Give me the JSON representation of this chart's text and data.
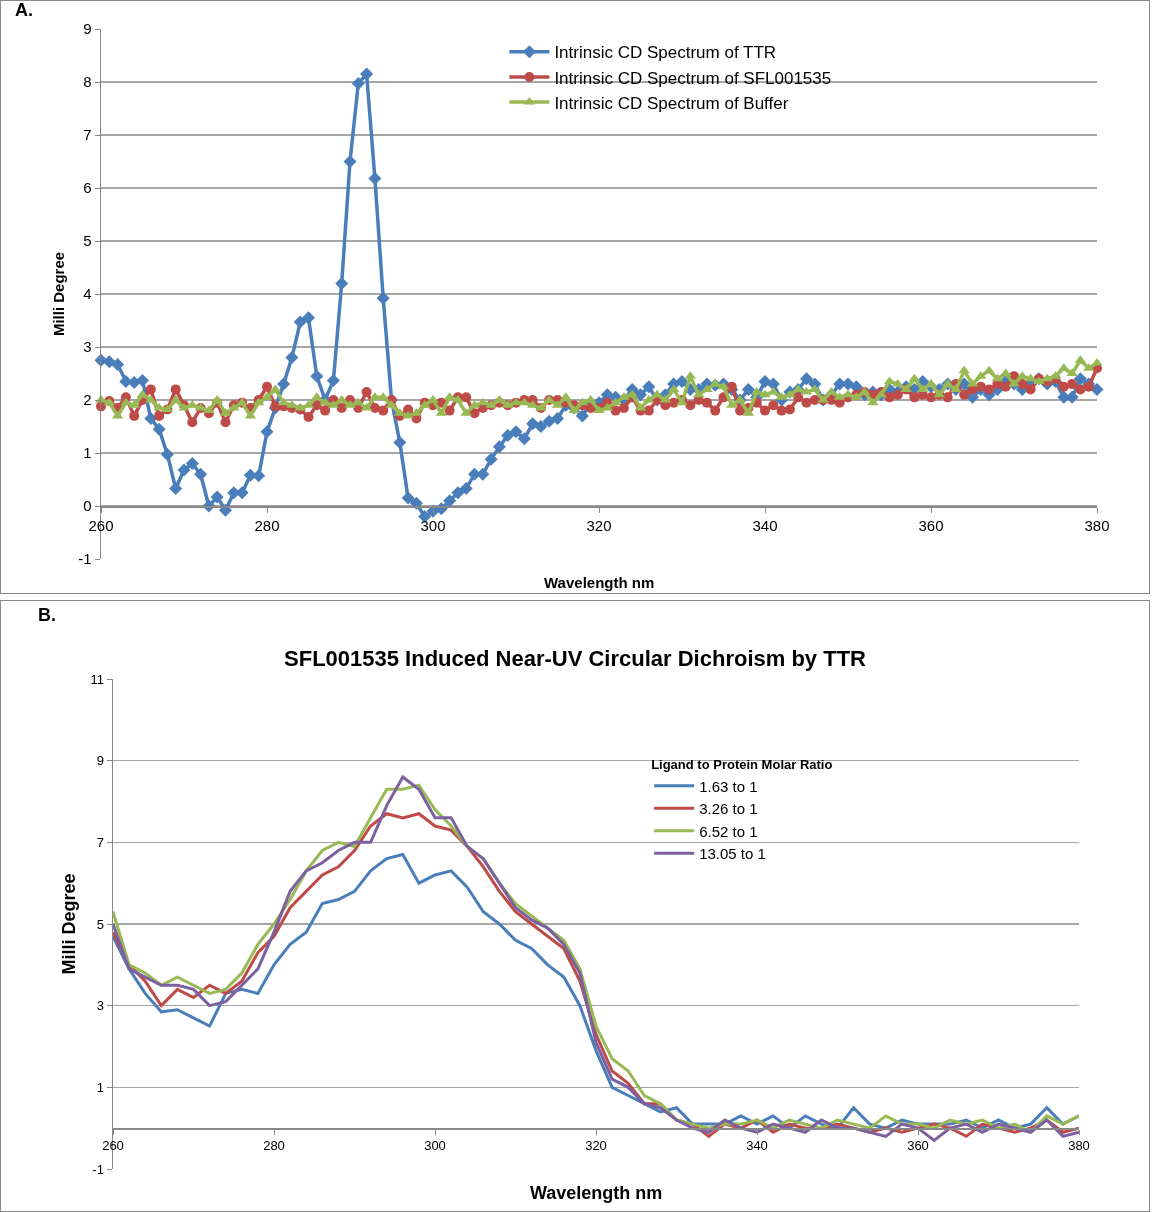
{
  "chart_data": [
    {
      "type": "line",
      "annotations": [
        "A."
      ],
      "xlabel": "Wavelength nm",
      "ylabel": "Milli Degree",
      "xlim": [
        260,
        380
      ],
      "xticks": [
        260,
        280,
        300,
        320,
        340,
        360,
        380
      ],
      "ylim": [
        -1,
        9
      ],
      "yticks": [
        -1,
        0,
        1,
        2,
        3,
        4,
        5,
        6,
        7,
        8,
        9
      ],
      "grid": "y",
      "legend": "top",
      "x": [
        260,
        261,
        262,
        263,
        264,
        265,
        266,
        267,
        268,
        269,
        270,
        271,
        272,
        273,
        274,
        275,
        276,
        277,
        278,
        279,
        280,
        281,
        282,
        283,
        284,
        285,
        286,
        287,
        288,
        289,
        290,
        291,
        292,
        293,
        294,
        295,
        296,
        297,
        298,
        299,
        300,
        301,
        302,
        303,
        304,
        305,
        306,
        307,
        308,
        309,
        310,
        311,
        312,
        313,
        314,
        315,
        316,
        317,
        318,
        319,
        320,
        321,
        322,
        323,
        324,
        325,
        326,
        327,
        328,
        329,
        330,
        331,
        332,
        333,
        334,
        335,
        336,
        337,
        338,
        339,
        340,
        341,
        342,
        343,
        344,
        345,
        346,
        347,
        348,
        349,
        350,
        351,
        352,
        353,
        354,
        355,
        356,
        357,
        358,
        359,
        360,
        361,
        362,
        363,
        364,
        365,
        366,
        367,
        368,
        369,
        370,
        371,
        372,
        373,
        374,
        375,
        376,
        377,
        378,
        379,
        380
      ],
      "series": [
        {
          "name": "Intrinsic CD Spectrum of TTR",
          "color": "#4a7ebb",
          "marker": "diamond",
          "values": [
            2.75,
            2.72,
            2.67,
            2.35,
            2.33,
            2.37,
            1.65,
            1.45,
            0.97,
            0.33,
            0.68,
            0.8,
            0.6,
            0.0,
            0.17,
            -0.08,
            0.25,
            0.25,
            0.58,
            0.57,
            1.4,
            1.85,
            2.3,
            2.8,
            3.47,
            3.55,
            2.45,
            2.0,
            2.37,
            4.2,
            6.5,
            7.97,
            8.15,
            6.18,
            3.92,
            2.0,
            1.2,
            0.15,
            0.05,
            -0.2,
            -0.1,
            -0.05,
            0.1,
            0.25,
            0.33,
            0.6,
            0.6,
            0.88,
            1.12,
            1.33,
            1.4,
            1.27,
            1.55,
            1.5,
            1.6,
            1.65,
            1.9,
            1.85,
            1.7,
            1.95,
            1.95,
            2.1,
            2.05,
            2.0,
            2.2,
            2.1,
            2.25,
            2.0,
            2.1,
            2.3,
            2.35,
            2.2,
            2.2,
            2.3,
            2.28,
            2.3,
            2.2,
            2.0,
            2.2,
            2.05,
            2.35,
            2.3,
            2.0,
            2.15,
            2.2,
            2.4,
            2.3,
            2.0,
            2.1,
            2.3,
            2.3,
            2.25,
            2.1,
            2.15,
            2.1,
            2.2,
            2.15,
            2.25,
            2.2,
            2.35,
            2.25,
            2.2,
            2.3,
            2.2,
            2.3,
            2.05,
            2.2,
            2.1,
            2.2,
            2.35,
            2.3,
            2.2,
            2.35,
            2.4,
            2.3,
            2.35,
            2.05,
            2.05,
            2.4,
            2.3,
            2.2
          ]
        },
        {
          "name": "Intrinsic CD Spectrum of SFL001535",
          "color": "#be4b48",
          "marker": "circle",
          "values": [
            1.88,
            1.98,
            1.85,
            2.05,
            1.7,
            2.0,
            2.2,
            1.7,
            1.82,
            2.2,
            1.9,
            1.58,
            1.85,
            1.75,
            1.95,
            1.58,
            1.9,
            1.95,
            1.85,
            2.0,
            2.25,
            1.88,
            1.88,
            1.85,
            1.82,
            1.68,
            1.9,
            1.8,
            2.0,
            1.85,
            2.0,
            1.85,
            2.15,
            1.85,
            1.8,
            2.0,
            1.7,
            1.82,
            1.65,
            1.95,
            1.9,
            1.95,
            1.8,
            2.05,
            2.05,
            1.75,
            1.85,
            1.9,
            1.95,
            1.9,
            1.95,
            2.0,
            2.0,
            1.85,
            2.0,
            2.0,
            1.95,
            1.9,
            1.9,
            1.85,
            1.85,
            1.95,
            1.8,
            1.85,
            2.05,
            1.8,
            1.8,
            2.0,
            1.9,
            1.95,
            2.0,
            1.9,
            2.0,
            1.95,
            1.8,
            2.05,
            2.25,
            1.8,
            1.85,
            1.95,
            1.8,
            1.9,
            1.8,
            1.82,
            2.05,
            1.95,
            2.0,
            2.0,
            2.0,
            1.95,
            2.05,
            2.1,
            2.15,
            2.1,
            2.15,
            2.05,
            2.1,
            2.2,
            2.05,
            2.1,
            2.05,
            2.1,
            2.05,
            2.3,
            2.1,
            2.2,
            2.25,
            2.2,
            2.3,
            2.25,
            2.45,
            2.3,
            2.2,
            2.4,
            2.35,
            2.4,
            2.25,
            2.3,
            2.2,
            2.25,
            2.6
          ]
        },
        {
          "name": "Intrinsic CD Spectrum of Buffer",
          "color": "#98b954",
          "marker": "triangle",
          "values": [
            2.0,
            1.95,
            1.7,
            1.95,
            1.9,
            2.1,
            2.0,
            1.85,
            1.82,
            2.0,
            1.85,
            1.9,
            1.85,
            1.8,
            2.0,
            1.75,
            1.85,
            1.95,
            1.7,
            1.95,
            2.05,
            2.2,
            1.95,
            1.9,
            1.85,
            1.9,
            2.05,
            1.95,
            1.9,
            2.0,
            1.9,
            1.95,
            1.85,
            2.05,
            2.05,
            1.9,
            1.75,
            1.7,
            1.75,
            1.9,
            2.0,
            1.75,
            2.05,
            2.0,
            1.75,
            1.9,
            1.95,
            1.9,
            2.0,
            1.9,
            1.95,
            1.95,
            1.9,
            1.85,
            2.0,
            1.9,
            2.05,
            1.8,
            1.95,
            2.0,
            1.8,
            1.85,
            1.95,
            2.05,
            2.1,
            1.85,
            2.0,
            2.1,
            2.0,
            2.2,
            1.95,
            2.45,
            2.1,
            2.2,
            2.3,
            2.25,
            1.9,
            2.0,
            1.75,
            2.15,
            2.1,
            2.15,
            2.05,
            2.1,
            2.2,
            2.15,
            2.2,
            2.0,
            2.15,
            2.05,
            2.1,
            2.05,
            2.15,
            1.95,
            2.1,
            2.35,
            2.3,
            2.2,
            2.4,
            2.2,
            2.3,
            2.1,
            2.3,
            2.2,
            2.55,
            2.3,
            2.45,
            2.55,
            2.4,
            2.5,
            2.3,
            2.45,
            2.4,
            2.35,
            2.4,
            2.45,
            2.6,
            2.5,
            2.75,
            2.6,
            2.7
          ]
        }
      ]
    },
    {
      "type": "line",
      "title": "SFL001535 Induced Near-UV Circular Dichroism by TTR",
      "annotations": [
        "B."
      ],
      "xlabel": "Wavelength nm",
      "ylabel": "Milli Degree",
      "legend_title": "Ligand to Protein Molar Ratio",
      "xlim": [
        260,
        380
      ],
      "xticks": [
        260,
        280,
        300,
        320,
        340,
        360,
        380
      ],
      "ylim": [
        -1,
        11
      ],
      "yticks": [
        -1,
        1,
        3,
        5,
        7,
        9,
        11
      ],
      "grid": "y",
      "legend": "top right",
      "x": [
        260,
        262,
        264,
        266,
        268,
        270,
        272,
        274,
        276,
        278,
        280,
        282,
        284,
        286,
        288,
        290,
        292,
        294,
        296,
        298,
        300,
        302,
        304,
        306,
        308,
        310,
        312,
        314,
        316,
        318,
        320,
        322,
        324,
        326,
        328,
        330,
        332,
        334,
        336,
        338,
        340,
        342,
        344,
        346,
        348,
        350,
        352,
        354,
        356,
        358,
        360,
        362,
        364,
        366,
        368,
        370,
        372,
        374,
        376,
        378,
        380
      ],
      "series": [
        {
          "name": "1.63 to 1",
          "color": "#4a7ebb",
          "values": [
            4.7,
            3.9,
            3.3,
            2.85,
            2.9,
            2.7,
            2.5,
            3.3,
            3.4,
            3.3,
            4.0,
            4.5,
            4.8,
            5.5,
            5.6,
            5.8,
            6.3,
            6.6,
            6.7,
            6.0,
            6.2,
            6.3,
            5.9,
            5.3,
            5.0,
            4.6,
            4.4,
            4.0,
            3.7,
            3.0,
            1.9,
            1.0,
            0.8,
            0.6,
            0.4,
            0.5,
            0.1,
            0.1,
            0.1,
            0.3,
            0.1,
            0.3,
            0.0,
            0.3,
            0.1,
            0.0,
            0.5,
            0.1,
            0.0,
            0.2,
            0.1,
            0.1,
            0.1,
            0.2,
            0.0,
            0.2,
            0.0,
            0.1,
            0.5,
            0.1,
            0.3
          ]
        },
        {
          "name": "3.26 to 1",
          "color": "#be4b48",
          "values": [
            4.8,
            4.0,
            3.6,
            3.0,
            3.4,
            3.2,
            3.5,
            3.3,
            3.6,
            4.3,
            4.7,
            5.4,
            5.8,
            6.2,
            6.4,
            6.8,
            7.4,
            7.7,
            7.6,
            7.7,
            7.4,
            7.3,
            6.9,
            6.4,
            5.8,
            5.3,
            5.0,
            4.7,
            4.4,
            3.6,
            2.3,
            1.4,
            1.1,
            0.6,
            0.6,
            0.2,
            0.1,
            -0.2,
            0.1,
            0.0,
            0.2,
            -0.1,
            0.1,
            0.0,
            0.0,
            0.1,
            0.0,
            -0.1,
            0.0,
            -0.1,
            0.0,
            0.1,
            0.0,
            -0.2,
            0.1,
            0.0,
            -0.1,
            0.0,
            0.2,
            -0.1,
            0.0
          ]
        },
        {
          "name": "6.52 to 1",
          "color": "#98b954",
          "values": [
            5.3,
            4.0,
            3.8,
            3.5,
            3.7,
            3.5,
            3.3,
            3.4,
            3.8,
            4.5,
            5.0,
            5.6,
            6.3,
            6.8,
            7.0,
            6.9,
            7.6,
            8.3,
            8.3,
            8.4,
            7.8,
            7.4,
            6.9,
            6.6,
            6.0,
            5.5,
            5.2,
            4.9,
            4.6,
            3.9,
            2.5,
            1.7,
            1.4,
            0.8,
            0.6,
            0.2,
            0.1,
            0.0,
            0.1,
            0.1,
            0.2,
            0.0,
            0.2,
            0.1,
            0.0,
            0.2,
            0.1,
            0.0,
            0.3,
            0.1,
            0.1,
            0.0,
            0.2,
            0.1,
            0.2,
            0.0,
            0.1,
            -0.1,
            0.3,
            0.1,
            0.3
          ]
        },
        {
          "name": "13.05 to 1",
          "color": "#7d60a0",
          "values": [
            5.0,
            3.9,
            3.7,
            3.5,
            3.5,
            3.4,
            3.0,
            3.1,
            3.5,
            3.9,
            4.8,
            5.8,
            6.3,
            6.5,
            6.8,
            7.0,
            7.0,
            7.9,
            8.6,
            8.3,
            7.6,
            7.6,
            6.9,
            6.6,
            6.0,
            5.4,
            5.1,
            4.9,
            4.5,
            3.8,
            2.1,
            1.2,
            1.0,
            0.6,
            0.5,
            0.2,
            0.0,
            -0.1,
            0.2,
            0.0,
            -0.1,
            0.1,
            0.0,
            -0.1,
            0.2,
            0.0,
            0.0,
            -0.1,
            -0.2,
            0.1,
            0.0,
            -0.3,
            0.0,
            0.1,
            -0.1,
            0.1,
            0.0,
            -0.1,
            0.2,
            -0.2,
            -0.1
          ]
        }
      ]
    }
  ]
}
